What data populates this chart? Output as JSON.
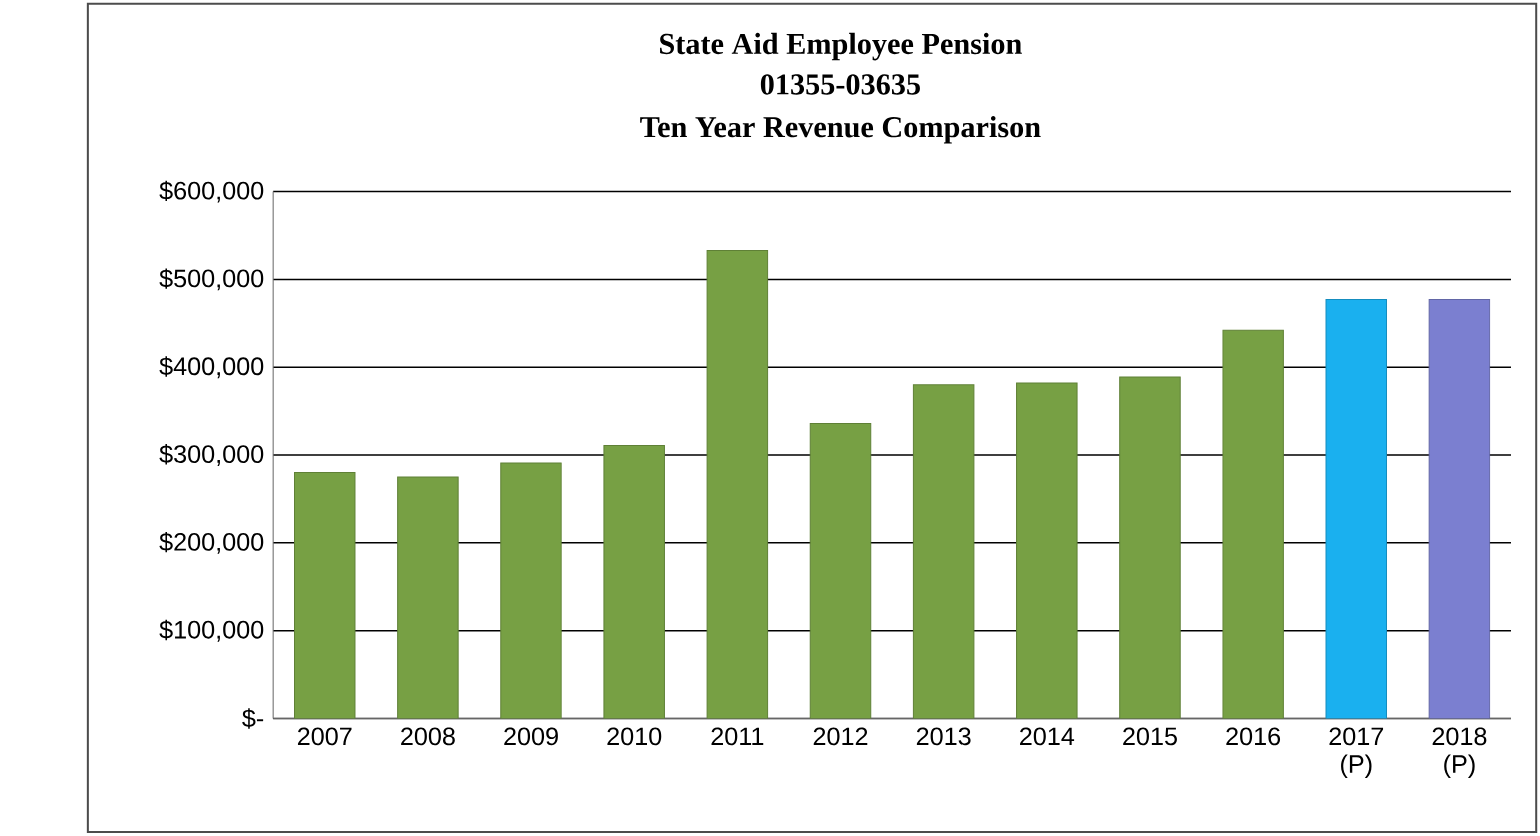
{
  "chart_data": {
    "type": "bar",
    "title": "State Aid Employee Pension",
    "subtitle": "01355-03635",
    "annotations": [
      "Ten Year Revenue Comparison"
    ],
    "categories": [
      "2007",
      "2008",
      "2009",
      "2010",
      "2011",
      "2012",
      "2013",
      "2014",
      "2015",
      "2016",
      "2017 (P)",
      "2018 (P)"
    ],
    "values": [
      280000,
      275000,
      291000,
      311000,
      533000,
      336000,
      380000,
      382000,
      389000,
      442000,
      477000,
      477000
    ],
    "colors": [
      "#77a044",
      "#77a044",
      "#77a044",
      "#77a044",
      "#77a044",
      "#77a044",
      "#77a044",
      "#77a044",
      "#77a044",
      "#77a044",
      "#1ab0ef",
      "#7b7fd0"
    ],
    "ylim": [
      0,
      600000
    ],
    "yticks": [
      {
        "value": 0,
        "label": "$-"
      },
      {
        "value": 100000,
        "label": "$100,000"
      },
      {
        "value": 200000,
        "label": "$200,000"
      },
      {
        "value": 300000,
        "label": "$300,000"
      },
      {
        "value": 400000,
        "label": "$400,000"
      },
      {
        "value": 500000,
        "label": "$500,000"
      },
      {
        "value": 600000,
        "label": "$600,000"
      }
    ],
    "grid": "y"
  }
}
